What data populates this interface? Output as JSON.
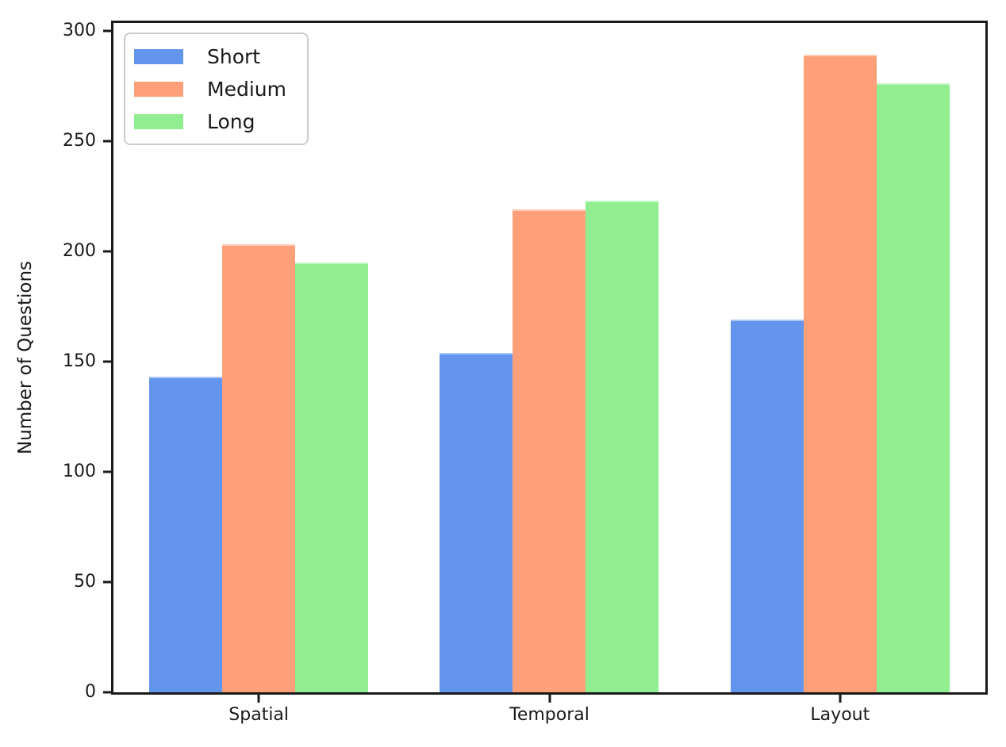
{
  "figure": {
    "background": "#ffffff",
    "text_color": "#1a1a1a",
    "spine_color": "#1a1a1a",
    "legend_border_color": "#cccccc"
  },
  "chart_data": {
    "type": "bar",
    "title": "",
    "xlabel": "",
    "ylabel": "Number of Questions",
    "categories": [
      "Spatial",
      "Temporal",
      "Layout"
    ],
    "series": [
      {
        "name": "Short",
        "color": "#6495ed",
        "values": [
          143,
          154,
          169
        ]
      },
      {
        "name": "Medium",
        "color": "#ffa07a",
        "values": [
          203,
          219,
          289
        ]
      },
      {
        "name": "Long",
        "color": "#90ee90",
        "values": [
          195,
          223,
          276
        ]
      }
    ],
    "ylim": [
      0,
      303.5
    ],
    "yticks": [
      0,
      50,
      100,
      150,
      200,
      250,
      300
    ],
    "grid": false,
    "legend": {
      "position": "upper-left",
      "labels": [
        "Short",
        "Medium",
        "Long"
      ]
    }
  }
}
